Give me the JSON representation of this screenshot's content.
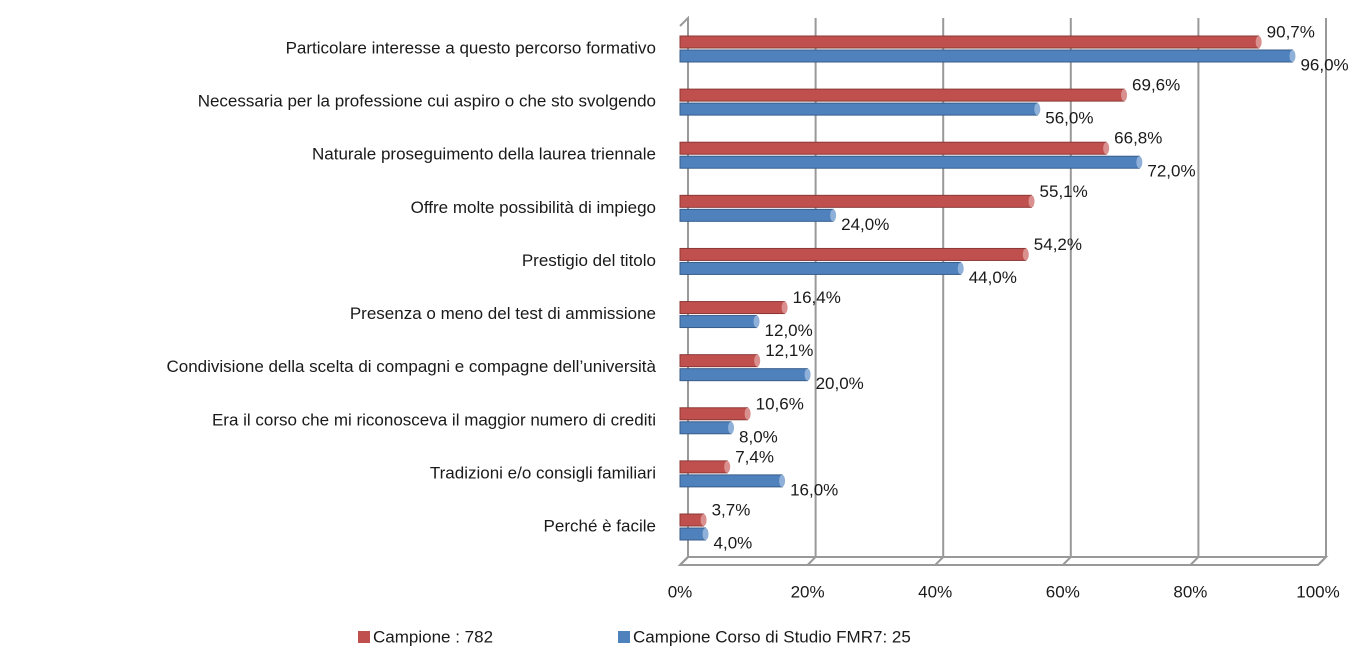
{
  "chart_data": {
    "type": "bar",
    "orientation": "horizontal",
    "categories": [
      "Particolare interesse a questo percorso formativo",
      "Necessaria per la professione cui aspiro o che sto svolgendo",
      "Naturale proseguimento della laurea triennale",
      "Offre molte possibilità di impiego",
      "Prestigio del titolo",
      "Presenza o meno del test di ammissione",
      "Condivisione della scelta di compagni e compagne dell’università",
      "Era il corso che mi riconosceva il maggior numero di crediti",
      "Tradizioni e/o consigli familiari",
      "Perché è facile"
    ],
    "series": [
      {
        "name": "Campione : 782",
        "color": "#c0504d",
        "values": [
          90.7,
          69.6,
          66.8,
          55.1,
          54.2,
          16.4,
          12.1,
          10.6,
          7.4,
          3.7
        ],
        "value_labels": [
          "90,7%",
          "69,6%",
          "66,8%",
          "55,1%",
          "54,2%",
          "16,4%",
          "12,1%",
          "10,6%",
          "7,4%",
          "3,7%"
        ]
      },
      {
        "name": "Campione Corso di Studio FMR7: 25",
        "color": "#4f81bd",
        "values": [
          96.0,
          56.0,
          72.0,
          24.0,
          44.0,
          12.0,
          20.0,
          8.0,
          16.0,
          4.0
        ],
        "value_labels": [
          "96,0%",
          "56,0%",
          "72,0%",
          "24,0%",
          "44,0%",
          "12,0%",
          "20,0%",
          "8,0%",
          "16,0%",
          "4,0%"
        ]
      }
    ],
    "xlim": [
      0,
      100
    ],
    "xticks": [
      {
        "value": 0,
        "label": "0%"
      },
      {
        "value": 20,
        "label": "20%"
      },
      {
        "value": 40,
        "label": "40%"
      },
      {
        "value": 60,
        "label": "60%"
      },
      {
        "value": 80,
        "label": "80%"
      },
      {
        "value": 100,
        "label": "100%"
      }
    ],
    "grid": true,
    "legend": "bottom"
  }
}
